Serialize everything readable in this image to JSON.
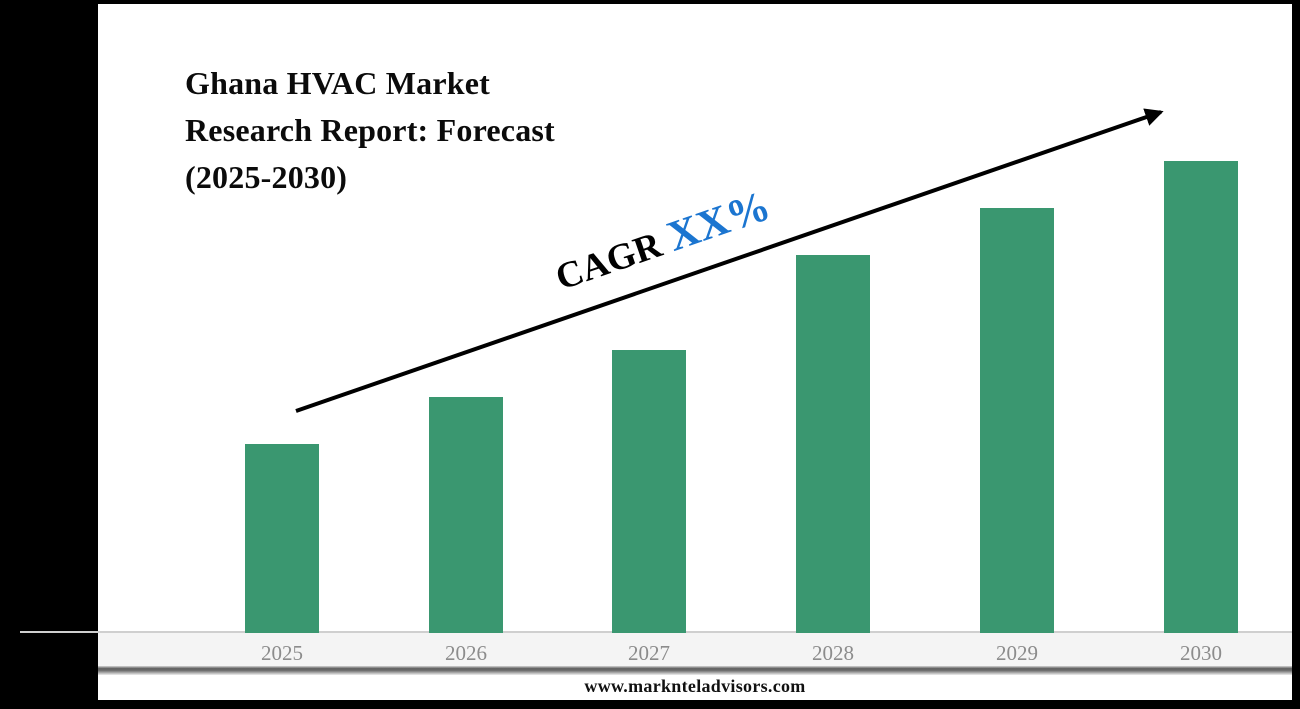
{
  "page": {
    "background": "#000000",
    "panel_background": "#ffffff"
  },
  "header": {
    "title": "Ghana HVAC Market Research Report: Forecast (2025-2030)",
    "title_lines": [
      "Ghana HVAC Market",
      "Research Report: Forecast",
      "(2025-2030)"
    ]
  },
  "chart_data": {
    "type": "bar",
    "title": "Ghana HVAC Market Research Report: Forecast (2025-2030)",
    "categories": [
      "2025",
      "2026",
      "2027",
      "2028",
      "2029",
      "2030"
    ],
    "values": [
      0.4,
      0.5,
      0.6,
      0.8,
      0.9,
      1.0
    ],
    "xlabel": "",
    "ylabel": "",
    "value_note": "relative bar heights; no numeric value axis shown (2030 = 1.0)",
    "bar_color": "#3a9770",
    "axis_label_color": "#8c8c8c",
    "grid": false,
    "legend": false,
    "annotations": [
      {
        "type": "cagr-text",
        "text": "CAGR XX%",
        "rotation_deg": -19,
        "label_color": "#000000",
        "value_color": "#1b75d0"
      },
      {
        "type": "trend-arrow",
        "color": "#000000",
        "from": [
          296,
          411
        ],
        "to": [
          1161,
          112
        ]
      }
    ]
  },
  "annotation": {
    "cagr_label": "CAGR",
    "cagr_value": "XX%"
  },
  "footer": {
    "website": "www.marknteladvisors.com"
  }
}
